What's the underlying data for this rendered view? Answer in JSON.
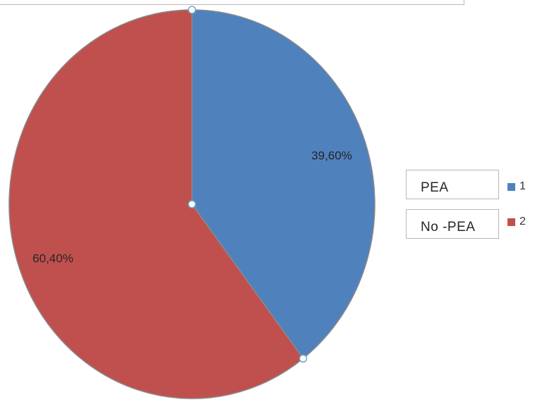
{
  "chart_data": {
    "type": "pie",
    "slices": [
      {
        "legend_label": "1",
        "value": 39.6,
        "label": "39,60%",
        "color": "#4f81bd"
      },
      {
        "legend_label": "2",
        "value": 60.4,
        "label": "60,40%",
        "color": "#c0504d"
      }
    ],
    "text_boxes": [
      "PEA",
      "No -PEA"
    ]
  }
}
